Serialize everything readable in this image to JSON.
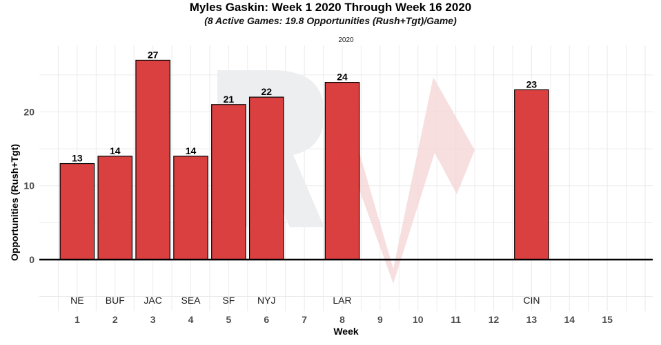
{
  "chart_data": {
    "type": "bar",
    "title": "Myles Gaskin: Week 1 2020 Through Week 16 2020",
    "subtitle": "(8 Active Games: 19.8 Opportunities (Rush+Tgt)/Game)",
    "facet_label": "2020",
    "xlabel": "Week",
    "ylabel": "Opportunities (Rush+Tgt)",
    "x_ticks": [
      "1",
      "2",
      "3",
      "4",
      "5",
      "6",
      "7",
      "8",
      "9",
      "10",
      "11",
      "12",
      "13",
      "14",
      "15"
    ],
    "y_ticks": [
      0,
      10,
      20
    ],
    "ylim": [
      -7,
      29
    ],
    "xlim": [
      0,
      16.2
    ],
    "bars": [
      {
        "week": 1,
        "value": 13,
        "team": "NE"
      },
      {
        "week": 2,
        "value": 14,
        "team": "BUF"
      },
      {
        "week": 3,
        "value": 27,
        "team": "JAC"
      },
      {
        "week": 4,
        "value": 14,
        "team": "SEA"
      },
      {
        "week": 5,
        "value": 21,
        "team": "SF"
      },
      {
        "week": 6,
        "value": 22,
        "team": "NYJ"
      },
      {
        "week": 8,
        "value": 24,
        "team": "LAR"
      },
      {
        "week": 13,
        "value": 23,
        "team": "CIN"
      }
    ],
    "team_label_y": -5.5,
    "bar_color": "#d93636",
    "bar_outline": "#000000",
    "grid": true
  }
}
